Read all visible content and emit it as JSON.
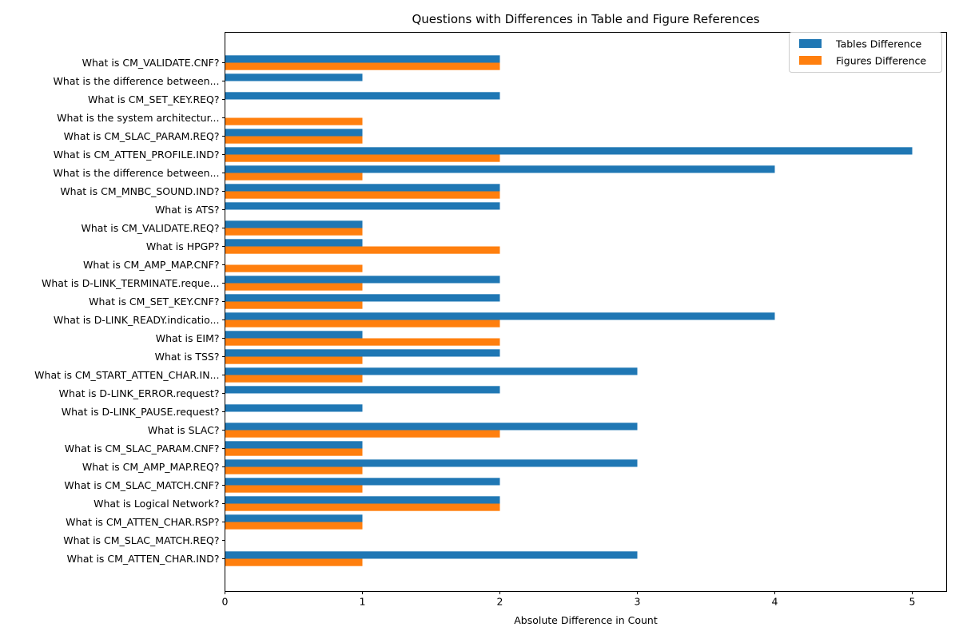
{
  "chart_data": {
    "type": "bar",
    "orientation": "horizontal",
    "title": "Questions with Differences in Table and Figure References",
    "xlabel": "Absolute Difference in Count",
    "ylabel": "",
    "xlim": [
      0,
      5.25
    ],
    "xticks": [
      0,
      1,
      2,
      3,
      4,
      5
    ],
    "grid": false,
    "legend_position": "top-right",
    "categories": [
      "What is CM_VALIDATE.CNF?",
      "What is the difference between...",
      "What is CM_SET_KEY.REQ?",
      "What is the system architectur...",
      "What is CM_SLAC_PARAM.REQ?",
      "What is CM_ATTEN_PROFILE.IND?",
      "What is the difference between...",
      "What is CM_MNBC_SOUND.IND?",
      "What is ATS?",
      "What is CM_VALIDATE.REQ?",
      "What is HPGP?",
      "What is CM_AMP_MAP.CNF?",
      "What is D-LINK_TERMINATE.reque...",
      "What is CM_SET_KEY.CNF?",
      "What is D-LINK_READY.indicatio...",
      "What is EIM?",
      "What is TSS?",
      "What is CM_START_ATTEN_CHAR.IN...",
      "What is D-LINK_ERROR.request?",
      "What is D-LINK_PAUSE.request?",
      "What is SLAC?",
      "What is CM_SLAC_PARAM.CNF?",
      "What is CM_AMP_MAP.REQ?",
      "What is CM_SLAC_MATCH.CNF?",
      "What is Logical Network?",
      "What is CM_ATTEN_CHAR.RSP?",
      "What is CM_SLAC_MATCH.REQ?",
      "What is CM_ATTEN_CHAR.IND?"
    ],
    "series": [
      {
        "name": "Tables Difference",
        "color": "#1f77b4",
        "values": [
          2,
          1,
          2,
          0,
          1,
          5,
          4,
          2,
          2,
          1,
          1,
          0,
          2,
          2,
          4,
          1,
          2,
          3,
          2,
          1,
          3,
          1,
          3,
          2,
          2,
          1,
          0,
          3
        ]
      },
      {
        "name": "Figures Difference",
        "color": "#ff7f0e",
        "values": [
          2,
          0,
          0,
          1,
          1,
          2,
          1,
          2,
          0,
          1,
          2,
          1,
          1,
          1,
          2,
          2,
          1,
          1,
          0,
          0,
          2,
          1,
          1,
          1,
          2,
          1,
          0,
          1
        ]
      }
    ]
  }
}
